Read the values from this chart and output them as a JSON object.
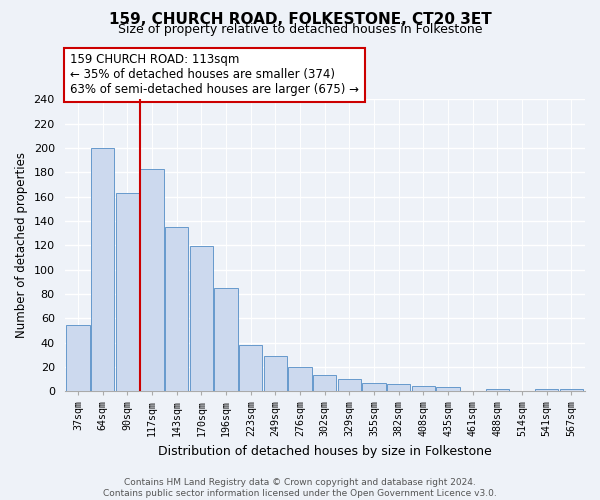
{
  "title": "159, CHURCH ROAD, FOLKESTONE, CT20 3ET",
  "subtitle": "Size of property relative to detached houses in Folkestone",
  "xlabel": "Distribution of detached houses by size in Folkestone",
  "ylabel": "Number of detached properties",
  "bar_labels": [
    "37sqm",
    "64sqm",
    "90sqm",
    "117sqm",
    "143sqm",
    "170sqm",
    "196sqm",
    "223sqm",
    "249sqm",
    "276sqm",
    "302sqm",
    "329sqm",
    "355sqm",
    "382sqm",
    "408sqm",
    "435sqm",
    "461sqm",
    "488sqm",
    "514sqm",
    "541sqm",
    "567sqm"
  ],
  "bar_values": [
    54,
    200,
    163,
    183,
    135,
    119,
    85,
    38,
    29,
    20,
    13,
    10,
    7,
    6,
    4,
    3,
    0,
    2,
    0,
    2,
    2
  ],
  "bar_color": "#ccd9ee",
  "bar_edge_color": "#6699cc",
  "highlight_line_color": "#cc0000",
  "annotation_title": "159 CHURCH ROAD: 113sqm",
  "annotation_line1": "← 35% of detached houses are smaller (374)",
  "annotation_line2": "63% of semi-detached houses are larger (675) →",
  "annotation_box_color": "#ffffff",
  "annotation_box_edge_color": "#cc0000",
  "ylim": [
    0,
    240
  ],
  "yticks": [
    0,
    20,
    40,
    60,
    80,
    100,
    120,
    140,
    160,
    180,
    200,
    220,
    240
  ],
  "footer_line1": "Contains HM Land Registry data © Crown copyright and database right 2024.",
  "footer_line2": "Contains public sector information licensed under the Open Government Licence v3.0.",
  "bg_color": "#eef2f8"
}
